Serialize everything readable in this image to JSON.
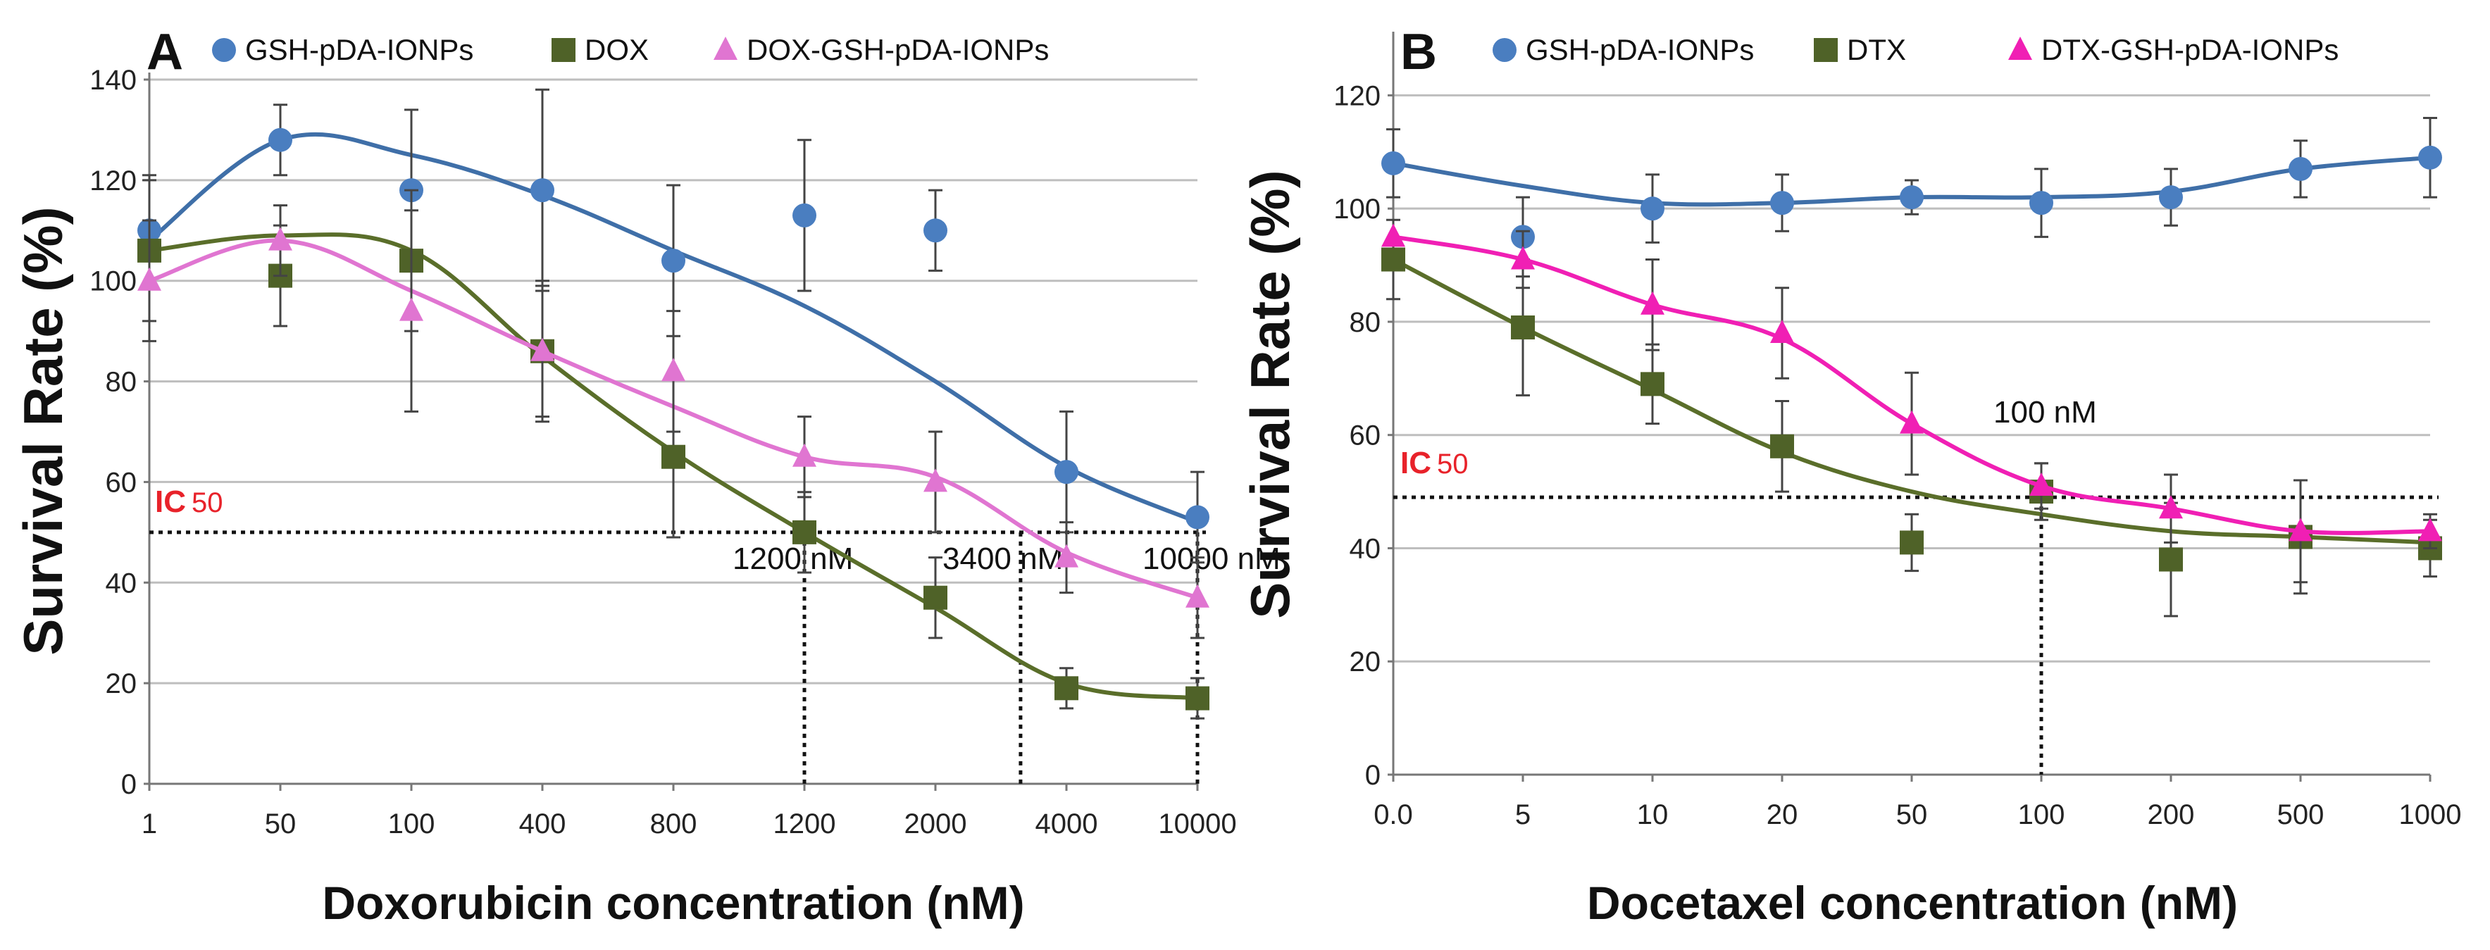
{
  "colors": {
    "gsh": "#4A7EC0",
    "gsh_line": "#3F6FA8",
    "drug": "#4F6228",
    "drug_line": "#5A6E2A",
    "dox_combo": "#E075D1",
    "dtx_combo": "#F01FB4",
    "ic50": "#E8222A",
    "grid": "#BEBEBE"
  },
  "chart_data": [
    {
      "type": "line",
      "panel": "A",
      "xlabel": "Doxorubicin concentration (nM)",
      "ylabel": "Survival Rate (%)",
      "categories": [
        "1",
        "50",
        "100",
        "400",
        "800",
        "1200",
        "2000",
        "4000",
        "10000"
      ],
      "yticks": [
        "0",
        "20",
        "40",
        "60",
        "80",
        "100",
        "120",
        "140"
      ],
      "ylim": [
        0,
        140
      ],
      "grid": true,
      "legend_position": "top",
      "ic50_label": "IC",
      "ic50_sub": "50",
      "ic50_value": 50,
      "series": [
        {
          "name": "GSH-pDA-IONPs",
          "marker": "circle",
          "color": "#4A7EC0",
          "values": [
            110,
            128,
            118,
            118,
            104,
            113,
            110,
            62,
            53
          ],
          "errors": [
            11,
            7,
            16,
            20,
            15,
            15,
            8,
            12,
            9
          ],
          "fit": [
            108,
            128,
            125,
            117,
            106,
            95,
            80,
            63,
            52
          ]
        },
        {
          "name": "DOX",
          "marker": "square",
          "color": "#4F6228",
          "values": [
            106,
            101,
            104,
            86,
            65,
            50,
            37,
            19,
            17
          ],
          "errors": [
            14,
            10,
            14,
            14,
            16,
            8,
            8,
            4,
            4
          ],
          "fit": [
            106,
            109,
            106,
            85,
            66,
            50,
            35,
            20,
            17
          ]
        },
        {
          "name": "DOX-GSH-pDA-IONPs",
          "marker": "triangle",
          "color": "#E075D1",
          "values": [
            100,
            108,
            94,
            86,
            82,
            65,
            60,
            45,
            37
          ],
          "errors": [
            12,
            7,
            20,
            13,
            12,
            8,
            10,
            7,
            8
          ],
          "fit": [
            100,
            108,
            98,
            86,
            75,
            65,
            61,
            46,
            37
          ]
        }
      ],
      "annotations": [
        {
          "text": "1200 nM",
          "x_category": "1200"
        },
        {
          "text": "3400 nM",
          "x_category": "3400"
        },
        {
          "text": "10000 nM",
          "x_category": "10000"
        }
      ]
    },
    {
      "type": "line",
      "panel": "B",
      "xlabel": "Docetaxel concentration (nM)",
      "ylabel": "Survival Rate (%)",
      "categories": [
        "0.0",
        "5",
        "10",
        "20",
        "50",
        "100",
        "200",
        "500",
        "1000"
      ],
      "yticks": [
        "0",
        "20",
        "40",
        "60",
        "80",
        "100",
        "120"
      ],
      "ylim": [
        0,
        130
      ],
      "grid": true,
      "legend_position": "top",
      "ic50_label": "IC",
      "ic50_sub": "50",
      "ic50_value": 49,
      "series": [
        {
          "name": "GSH-pDA-IONPs",
          "marker": "circle",
          "color": "#4A7EC0",
          "values": [
            108,
            95,
            100,
            101,
            102,
            101,
            102,
            107,
            109
          ],
          "errors": [
            6,
            7,
            6,
            5,
            3,
            6,
            5,
            5,
            7
          ],
          "fit": [
            108,
            104,
            101,
            101,
            102,
            102,
            103,
            107,
            109
          ]
        },
        {
          "name": "DTX",
          "marker": "square",
          "color": "#4F6228",
          "values": [
            91,
            79,
            69,
            58,
            41,
            50,
            38,
            42,
            40
          ],
          "errors": [
            7,
            12,
            7,
            8,
            5,
            5,
            10,
            10,
            5
          ],
          "fit": [
            91,
            79,
            68,
            57,
            50,
            46,
            43,
            42,
            41
          ]
        },
        {
          "name": "DTX-GSH-pDA-IONPs",
          "marker": "triangle",
          "color": "#F01FB4",
          "values": [
            95,
            91,
            83,
            78,
            62,
            51,
            47,
            43,
            43
          ],
          "errors": [
            0,
            5,
            8,
            8,
            9,
            4,
            6,
            9,
            3
          ],
          "fit": [
            95,
            91,
            83,
            77,
            62,
            51,
            47,
            43,
            43
          ]
        }
      ],
      "annotations": [
        {
          "text": "100 nM",
          "x_category": "100"
        }
      ]
    }
  ]
}
